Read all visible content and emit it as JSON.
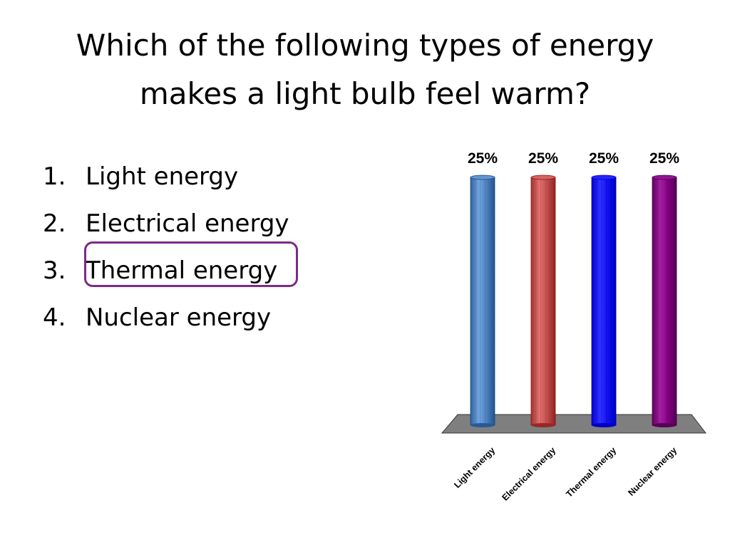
{
  "slide": {
    "title_lines": [
      "Which of the following types of energy",
      "makes a light bulb feel warm?"
    ],
    "options": [
      {
        "number": "1.",
        "label": "Light energy"
      },
      {
        "number": "2.",
        "label": "Electrical energy"
      },
      {
        "number": "3.",
        "label": "Thermal energy"
      },
      {
        "number": "4.",
        "label": "Nuclear energy"
      }
    ],
    "highlighted_option": 3,
    "highlight_color": "#7b2a8a"
  },
  "chart_data": {
    "type": "bar",
    "categories": [
      "Light energy",
      "Electrical energy",
      "Thermal energy",
      "Nuclear energy"
    ],
    "values": [
      25,
      25,
      25,
      25
    ],
    "data_labels": [
      "25%",
      "25%",
      "25%",
      "25%"
    ],
    "colors": [
      "#4f81bd",
      "#c0504d",
      "#1010ee",
      "#800080"
    ],
    "floor_color": "#7f7f7f",
    "ylim": [
      0,
      25
    ],
    "grid": false,
    "legend": "none",
    "title": "",
    "xlabel": "",
    "ylabel": ""
  }
}
